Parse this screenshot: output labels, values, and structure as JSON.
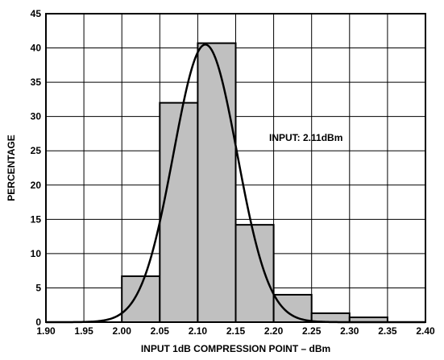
{
  "chart_data": {
    "type": "bar",
    "title": "",
    "xlabel": "INPUT 1dB COMPRESSION POINT – dBm",
    "ylabel": "PERCENTAGE",
    "xlim": [
      1.9,
      2.4
    ],
    "ylim": [
      0,
      45
    ],
    "grid": true,
    "x_ticks": [
      "1.90",
      "1.95",
      "2.00",
      "2.05",
      "2.10",
      "2.15",
      "2.20",
      "2.25",
      "2.30",
      "2.35",
      "2.40"
    ],
    "y_ticks": [
      "0",
      "5",
      "10",
      "15",
      "20",
      "25",
      "30",
      "35",
      "40",
      "45"
    ],
    "bins": [
      {
        "start": 2.0,
        "end": 2.05,
        "value": 6.7
      },
      {
        "start": 2.05,
        "end": 2.1,
        "value": 32.0
      },
      {
        "start": 2.1,
        "end": 2.15,
        "value": 40.7
      },
      {
        "start": 2.15,
        "end": 2.2,
        "value": 14.2
      },
      {
        "start": 2.2,
        "end": 2.25,
        "value": 4.0
      },
      {
        "start": 2.25,
        "end": 2.3,
        "value": 1.3
      },
      {
        "start": 2.3,
        "end": 2.35,
        "value": 0.7
      }
    ],
    "fit_curve": {
      "type": "normal",
      "mean": 2.11,
      "peak": 40.5,
      "sigma": 0.042
    },
    "annotation": "INPUT: 2.11dBm",
    "colors": {
      "bar_fill": "#c0c0c0",
      "line": "#000000",
      "grid": "#000000"
    }
  }
}
